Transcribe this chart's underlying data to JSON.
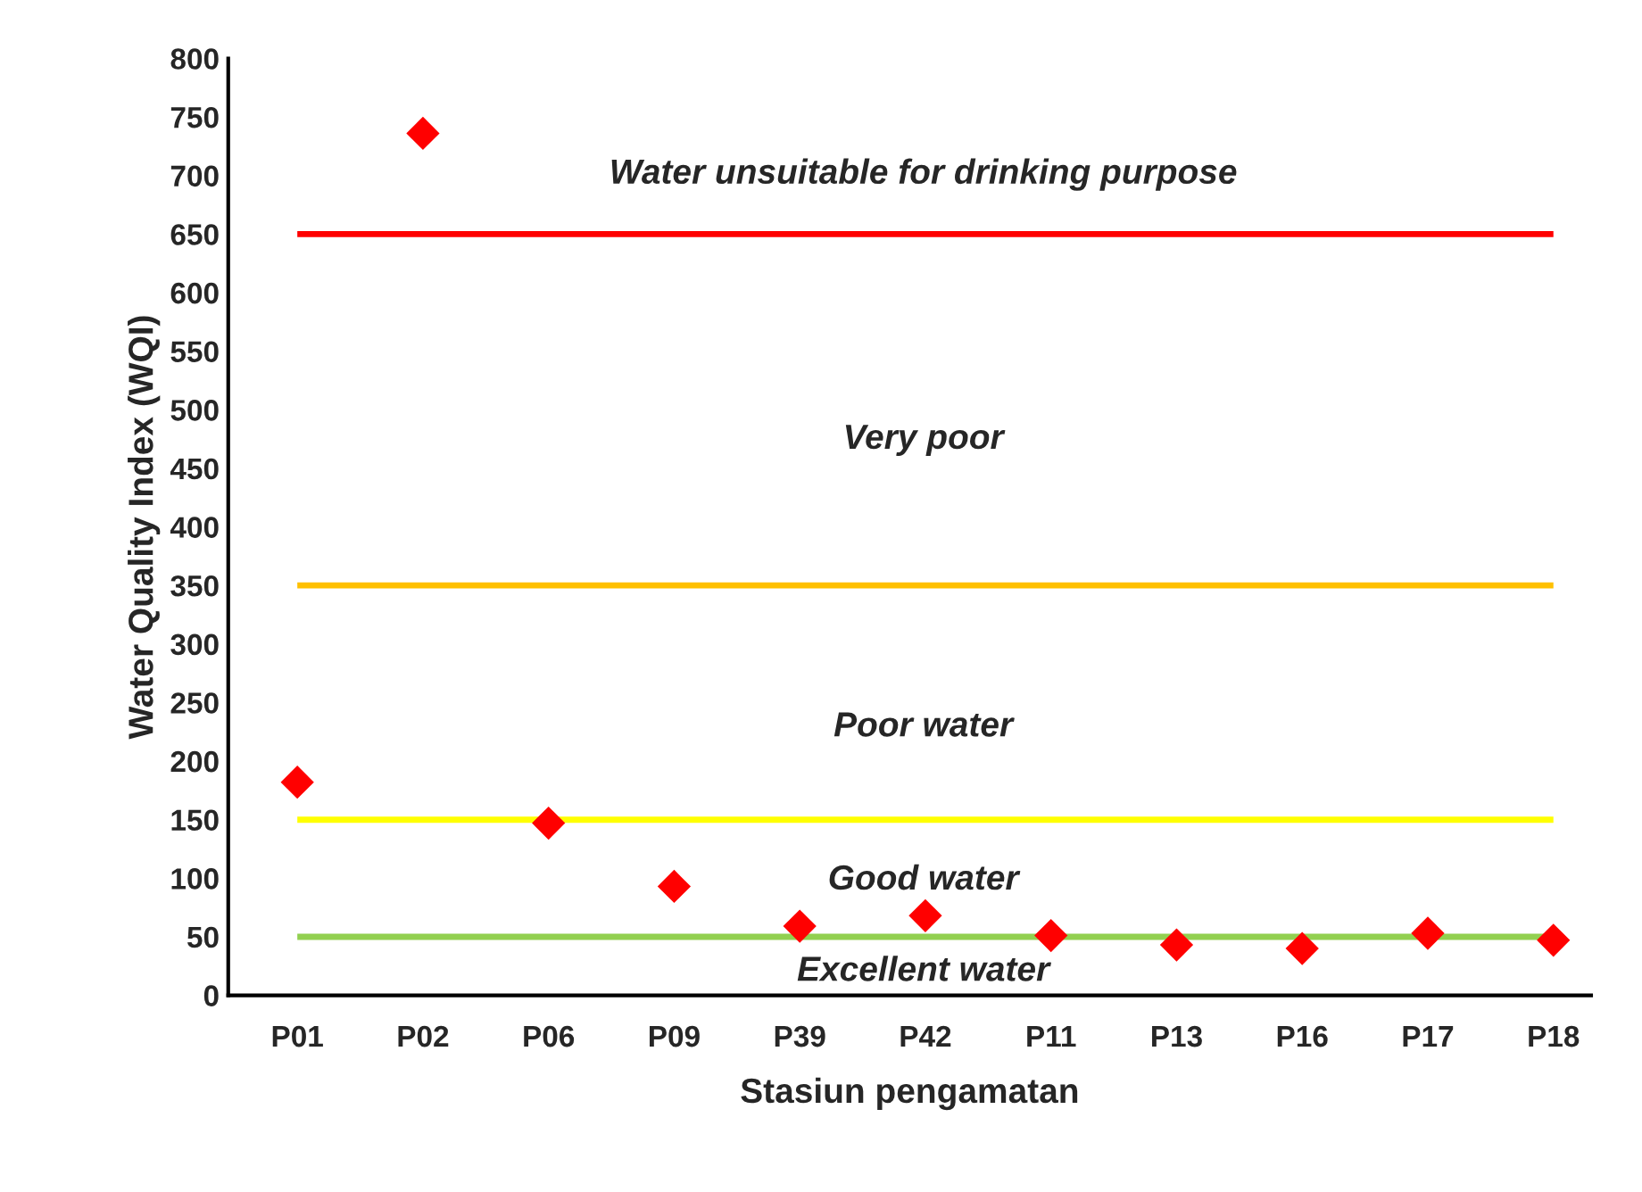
{
  "chart_data": {
    "type": "scatter",
    "xlabel": "Stasiun pengamatan",
    "ylabel": "Water Quality Index (WQI)",
    "categories": [
      "P01",
      "P02",
      "P06",
      "P09",
      "P39",
      "P42",
      "P11",
      "P13",
      "P16",
      "P17",
      "P18"
    ],
    "series": [
      {
        "color": "#ff0000",
        "values": [
          182,
          736,
          147,
          93,
          59,
          68,
          51,
          43,
          40,
          53,
          47
        ]
      }
    ],
    "marker": "diamond",
    "ylim": [
      0,
      800
    ],
    "yticks": [
      0,
      50,
      100,
      150,
      200,
      250,
      300,
      350,
      400,
      450,
      500,
      550,
      600,
      650,
      700,
      750,
      800
    ],
    "grid": false,
    "legend": false,
    "ref_lines": [
      {
        "axis": "y",
        "value": 650,
        "color": "#ff0000"
      },
      {
        "axis": "y",
        "value": 350,
        "color": "#ffc000"
      },
      {
        "axis": "y",
        "value": 150,
        "color": "#ffff00"
      },
      {
        "axis": "y",
        "value": 50,
        "color": "#92d050"
      }
    ],
    "annotations": [
      "Water unsuitable for drinking purpose",
      "Very poor",
      "Poor water",
      "Good water",
      "Excellent water"
    ]
  }
}
